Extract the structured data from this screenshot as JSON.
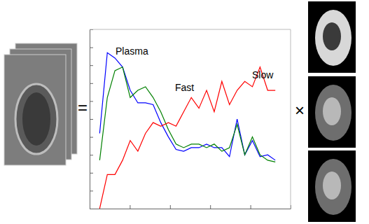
{
  "chart_data": {
    "type": "line",
    "x": [
      0.25,
      0.44,
      0.63,
      0.82,
      1.01,
      1.2,
      1.39,
      1.58,
      1.77,
      1.96,
      2.15,
      2.34,
      2.53,
      2.72,
      2.91,
      3.1,
      3.29,
      3.48,
      3.67,
      3.86,
      4.05,
      4.24,
      4.43,
      4.62
    ],
    "series": [
      {
        "name": "Plasma",
        "color": "#0000ff",
        "values": [
          4.2,
          8.7,
          8.4,
          7.9,
          6.6,
          5.9,
          5.9,
          5.8,
          4.8,
          4.0,
          3.3,
          3.2,
          3.4,
          3.4,
          3.6,
          3.4,
          3.4,
          2.9,
          5.0,
          3.0,
          3.8,
          2.9,
          3.0,
          2.7
        ]
      },
      {
        "name": "Fast",
        "color": "#008000",
        "values": [
          2.7,
          6.2,
          7.7,
          7.9,
          6.2,
          6.6,
          6.8,
          6.2,
          5.4,
          4.4,
          3.6,
          3.4,
          3.6,
          3.6,
          3.4,
          3.6,
          3.2,
          3.4,
          4.7,
          3.0,
          4.0,
          3.0,
          2.7,
          2.6
        ]
      },
      {
        "name": "Slow",
        "color": "#ff0000",
        "values": [
          0.0,
          1.9,
          1.9,
          2.7,
          3.8,
          3.2,
          4.2,
          4.8,
          4.6,
          4.8,
          4.6,
          5.4,
          6.2,
          5.6,
          6.6,
          5.4,
          7.1,
          5.8,
          6.6,
          7.1,
          6.8,
          7.9,
          6.6,
          6.6
        ]
      }
    ],
    "xlim": [
      0,
      5
    ],
    "xticks": [
      0,
      1,
      2,
      3,
      4,
      5
    ],
    "ylim": [
      0,
      10
    ],
    "yticks": [
      0,
      1,
      2,
      3,
      4,
      5,
      6,
      7,
      8,
      9,
      10
    ],
    "tick_labels": false,
    "grid": false
  },
  "equals": "=",
  "times": "×"
}
